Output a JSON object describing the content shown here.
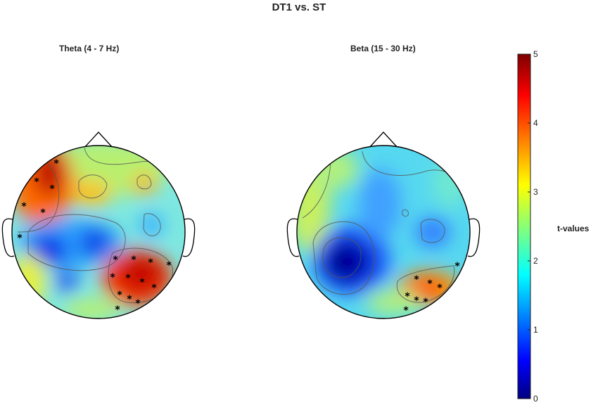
{
  "figure": {
    "title": "DT1 vs. ST",
    "colorbar_label": "t-values",
    "colorbar_ticks": [
      "0",
      "1",
      "2",
      "3",
      "4",
      "5"
    ],
    "colorbar_range": [
      0,
      5
    ],
    "colormap": [
      "#00007f",
      "#0000ff",
      "#00ffff",
      "#ffff00",
      "#ff0000",
      "#7f0000"
    ]
  },
  "panels": [
    {
      "id": "theta",
      "title": "Theta (4 - 7 Hz)"
    },
    {
      "id": "beta",
      "title": "Beta (15 - 30 Hz)"
    }
  ]
}
